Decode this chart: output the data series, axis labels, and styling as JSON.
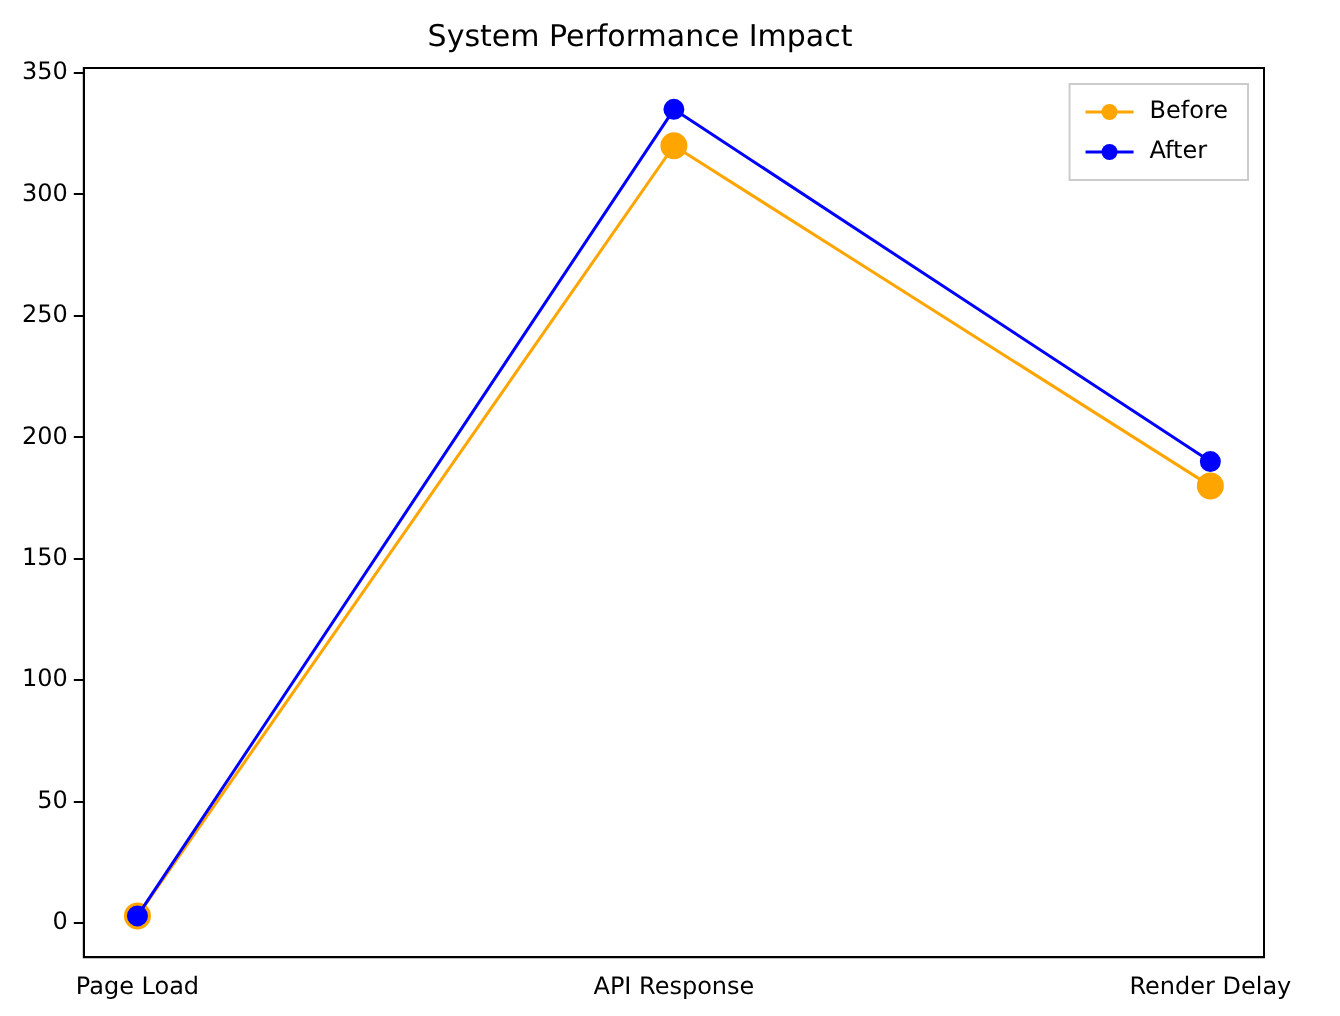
{
  "chart_data": {
    "type": "line",
    "title": "System Performance Impact",
    "categories": [
      "Page Load",
      "API Response",
      "Render Delay"
    ],
    "series": [
      {
        "name": "Before",
        "color": "#ffa500",
        "values": [
          3,
          320,
          180
        ]
      },
      {
        "name": "After",
        "color": "#0000ff",
        "values": [
          3,
          335,
          190
        ]
      }
    ],
    "ylim": [
      -14,
      352
    ],
    "yticks": [
      0,
      50,
      100,
      150,
      200,
      250,
      300,
      350
    ],
    "grid": false,
    "legend": "top right",
    "marker": "circle",
    "line_style": "solid"
  }
}
